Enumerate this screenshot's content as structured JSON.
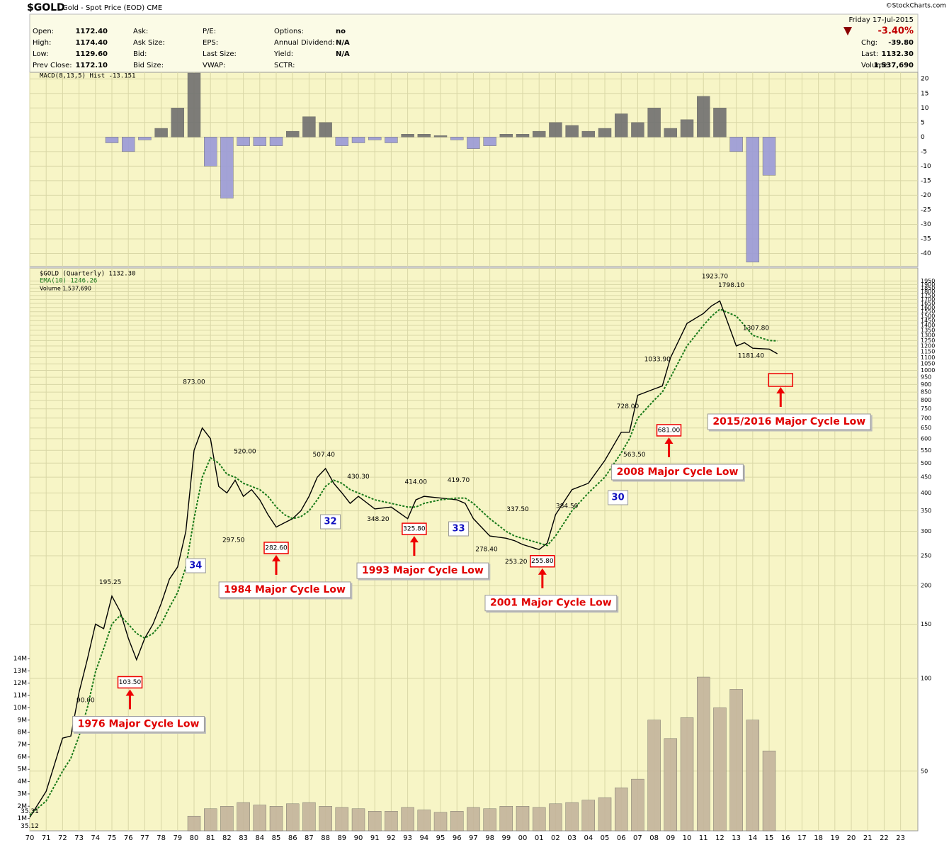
{
  "header": {
    "title": "$GOLD",
    "subtitle": "Gold - Spot Price (EOD) CME",
    "date": "Friday 17-Jul-2015",
    "copyright": "©StockCharts.com",
    "change_pct": "-3.40%",
    "columns": [
      [
        {
          "label": "Open:",
          "value": "1172.40"
        },
        {
          "label": "High:",
          "value": "1174.40"
        },
        {
          "label": "Low:",
          "value": "1129.60"
        },
        {
          "label": "Prev Close:",
          "value": "1172.10"
        }
      ],
      [
        {
          "label": "Ask:"
        },
        {
          "label": "Ask Size:"
        },
        {
          "label": "Bid:"
        },
        {
          "label": "Bid Size:"
        }
      ],
      [
        {
          "label": "P/E:"
        },
        {
          "label": "EPS:"
        },
        {
          "label": "Last Size:"
        },
        {
          "label": "VWAP:"
        }
      ],
      [
        {
          "label": "Options:",
          "value": "no"
        },
        {
          "label": "Annual Dividend:",
          "value": "N/A"
        },
        {
          "label": "Yield:",
          "value": "N/A"
        },
        {
          "label": "SCTR:"
        }
      ]
    ],
    "right": [
      {
        "label": "Chg:",
        "value": "-39.80"
      },
      {
        "label": "Last:",
        "value": "1132.30"
      },
      {
        "label": "Volume:",
        "value": "1,537,690"
      }
    ]
  },
  "chart_data": [
    {
      "type": "bar",
      "legend": "MACD(8,13,5) Hist -13.151",
      "color": "#707070",
      "negative_color": "#9a9ad8",
      "x": [
        1975,
        1976,
        1977,
        1978,
        1979,
        1980,
        1981,
        1982,
        1983,
        1984,
        1985,
        1986,
        1987,
        1988,
        1989,
        1990,
        1991,
        1992,
        1993,
        1994,
        1995,
        1996,
        1997,
        1998,
        1999,
        2000,
        2001,
        2002,
        2003,
        2004,
        2005,
        2006,
        2007,
        2008,
        2009,
        2010,
        2011,
        2012,
        2013,
        2014,
        2015
      ],
      "values": [
        -2,
        -5,
        -1,
        3,
        10,
        22,
        -10,
        -21,
        -3,
        -3,
        -3,
        2,
        7,
        5,
        -3,
        -2,
        -1,
        -2,
        1,
        1,
        0.5,
        -1,
        -4,
        -3,
        1,
        1,
        2,
        5,
        4,
        2,
        3,
        8,
        5,
        10,
        3,
        6,
        14,
        10,
        -5,
        -43,
        -13.151
      ],
      "ylim": [
        -44.5,
        22.25
      ],
      "yticks": [
        20,
        15,
        10,
        5,
        0,
        -5,
        -10,
        -15,
        -20,
        -25,
        -30,
        -35,
        -40
      ]
    },
    {
      "type": "line",
      "log_scale": true,
      "grid": true,
      "x": [
        1970,
        1971,
        1972,
        1972.5,
        1973,
        1973.5,
        1974,
        1974.5,
        1975,
        1975.5,
        1976,
        1976.5,
        1977,
        1977.5,
        1978,
        1978.5,
        1979,
        1979.5,
        1980,
        1980.5,
        1981,
        1981.5,
        1982,
        1982.5,
        1983,
        1983.5,
        1984,
        1984.5,
        1985,
        1985.5,
        1986,
        1986.5,
        1987,
        1987.5,
        1988,
        1988.5,
        1989,
        1989.5,
        1990,
        1991,
        1992,
        1993,
        1993.5,
        1994,
        1995,
        1996,
        1996.5,
        1997,
        1998,
        1999,
        1999.5,
        2000,
        2001,
        2001.5,
        2002,
        2003,
        2004,
        2005,
        2006,
        2006.5,
        2007,
        2008,
        2008.5,
        2009,
        2010,
        2011,
        2011.5,
        2012,
        2013,
        2013.5,
        2014,
        2015,
        2015.5
      ],
      "series": [
        {
          "name": "$GOLD (Quarterly) 1132.30",
          "color": "#000000",
          "values": [
            35.4,
            43,
            64,
            65,
            90,
            115,
            150,
            145,
            185,
            165,
            135,
            115,
            135,
            150,
            175,
            210,
            230,
            300,
            550,
            650,
            600,
            420,
            400,
            440,
            390,
            410,
            380,
            340,
            310,
            320,
            330,
            350,
            390,
            450,
            480,
            430,
            400,
            370,
            390,
            355,
            360,
            330,
            380,
            390,
            385,
            380,
            370,
            330,
            290,
            285,
            280,
            272,
            262,
            275,
            340,
            410,
            430,
            510,
            630,
            630,
            830,
            870,
            890,
            1100,
            1420,
            1530,
            1620,
            1680,
            1200,
            1230,
            1180,
            1172,
            1132.3
          ]
        },
        {
          "name": "EMA(10) 1246.26",
          "color": "#1a7a1a",
          "dashed": true,
          "values": [
            36,
            40,
            50,
            55,
            65,
            80,
            105,
            125,
            150,
            160,
            150,
            140,
            135,
            140,
            150,
            170,
            190,
            230,
            330,
            450,
            520,
            500,
            460,
            450,
            430,
            420,
            410,
            390,
            360,
            340,
            330,
            335,
            350,
            380,
            420,
            440,
            430,
            410,
            400,
            380,
            370,
            360,
            360,
            370,
            380,
            385,
            385,
            370,
            330,
            300,
            290,
            285,
            275,
            270,
            290,
            350,
            400,
            450,
            540,
            600,
            700,
            800,
            850,
            950,
            1200,
            1400,
            1500,
            1580,
            1500,
            1400,
            1300,
            1250,
            1246.26
          ]
        }
      ],
      "ylim": [
        32,
        2150
      ],
      "yticks": [
        50,
        100,
        150,
        200,
        250,
        300,
        350,
        400,
        450,
        500,
        550,
        600,
        650,
        700,
        750,
        800,
        850,
        900,
        950,
        1000,
        1050,
        1100,
        1150,
        1200,
        1250,
        1300,
        1350,
        1400,
        1450,
        1500,
        1550,
        1600,
        1650,
        1700,
        1750,
        1800,
        1850,
        1900,
        1950
      ],
      "xlim": [
        1970,
        2024.05
      ],
      "xticks": [
        {
          "value": 1970,
          "label": "70"
        },
        {
          "value": 1971,
          "label": "71"
        },
        {
          "value": 1972,
          "label": "72"
        },
        {
          "value": 1973,
          "label": "73"
        },
        {
          "value": 1974,
          "label": "74"
        },
        {
          "value": 1975,
          "label": "75"
        },
        {
          "value": 1976,
          "label": "76"
        },
        {
          "value": 1977,
          "label": "77"
        },
        {
          "value": 1978,
          "label": "78"
        },
        {
          "value": 1979,
          "label": "79"
        },
        {
          "value": 1980,
          "label": "80"
        },
        {
          "value": 1981,
          "label": "81"
        },
        {
          "value": 1982,
          "label": "82"
        },
        {
          "value": 1983,
          "label": "83"
        },
        {
          "value": 1984,
          "label": "84"
        },
        {
          "value": 1985,
          "label": "85"
        },
        {
          "value": 1986,
          "label": "86"
        },
        {
          "value": 1987,
          "label": "87"
        },
        {
          "value": 1988,
          "label": "88"
        },
        {
          "value": 1989,
          "label": "89"
        },
        {
          "value": 1990,
          "label": "90"
        },
        {
          "value": 1991,
          "label": "91"
        },
        {
          "value": 1992,
          "label": "92"
        },
        {
          "value": 1993,
          "label": "93"
        },
        {
          "value": 1994,
          "label": "94"
        },
        {
          "value": 1995,
          "label": "95"
        },
        {
          "value": 1996,
          "label": "96"
        },
        {
          "value": 1997,
          "label": "97"
        },
        {
          "value": 1998,
          "label": "98"
        },
        {
          "value": 1999,
          "label": "99"
        },
        {
          "value": 2000,
          "label": "00"
        },
        {
          "value": 2001,
          "label": "01"
        },
        {
          "value": 2002,
          "label": "02"
        },
        {
          "value": 2003,
          "label": "03"
        },
        {
          "value": 2004,
          "label": "04"
        },
        {
          "value": 2005,
          "label": "05"
        },
        {
          "value": 2006,
          "label": "06"
        },
        {
          "value": 2007,
          "label": "07"
        },
        {
          "value": 2008,
          "label": "08"
        },
        {
          "value": 2009,
          "label": "09"
        },
        {
          "value": 2010,
          "label": "10"
        },
        {
          "value": 2011,
          "label": "11"
        },
        {
          "value": 2012,
          "label": "12"
        },
        {
          "value": 2013,
          "label": "13"
        },
        {
          "value": 2014,
          "label": "14"
        },
        {
          "value": 2015,
          "label": "15"
        },
        {
          "value": 2016,
          "label": "16"
        },
        {
          "value": 2017,
          "label": "17"
        },
        {
          "value": 2018,
          "label": "18"
        },
        {
          "value": 2019,
          "label": "19"
        },
        {
          "value": 2020,
          "label": "20"
        },
        {
          "value": 2021,
          "label": "21"
        },
        {
          "value": 2022,
          "label": "22"
        },
        {
          "value": 2023,
          "label": "23"
        }
      ],
      "annotations": [
        {
          "x": 1970,
          "value": 35.31,
          "label": "35.31"
        },
        {
          "x": 1970,
          "value": 35.12,
          "label": "35.12"
        },
        {
          "x": 1974.9,
          "value": 195.25,
          "label": "195.25"
        },
        {
          "x": 1973.4,
          "value": 90,
          "label": "90.00"
        },
        {
          "x": 1980,
          "value": 873,
          "label": "873.00"
        },
        {
          "x": 1982.4,
          "value": 297.5,
          "label": "297.50"
        },
        {
          "x": 1983.1,
          "value": 520,
          "label": "520.00"
        },
        {
          "x": 1987.9,
          "value": 507.4,
          "label": "507.40"
        },
        {
          "x": 1990,
          "value": 430.3,
          "label": "430.30"
        },
        {
          "x": 1991.2,
          "value": 348.2,
          "label": "348.20"
        },
        {
          "x": 1993.5,
          "value": 414,
          "label": "414.00"
        },
        {
          "x": 1996.1,
          "value": 419.7,
          "label": "419.70"
        },
        {
          "x": 1997.8,
          "value": 278.4,
          "label": "278.40"
        },
        {
          "x": 1999.7,
          "value": 337.5,
          "label": "337.50"
        },
        {
          "x": 1999.6,
          "value": 253.2,
          "label": "253.20"
        },
        {
          "x": 2002.7,
          "value": 384.5,
          "label": "384.50"
        },
        {
          "x": 2006.4,
          "value": 728,
          "label": "728.00"
        },
        {
          "x": 2006.8,
          "value": 563.5,
          "label": "563.50"
        },
        {
          "x": 2008.2,
          "value": 1033.9,
          "label": "1033.90"
        },
        {
          "x": 2011.7,
          "value": 1923.7,
          "label": "1923.70"
        },
        {
          "x": 2012.7,
          "value": 1798.1,
          "label": "1798.10"
        },
        {
          "x": 2014.2,
          "value": 1307.8,
          "label": "1307.80"
        },
        {
          "x": 2013.9,
          "value": 1181.4,
          "label": "1181.40"
        }
      ],
      "cycle_lows": [
        {
          "label": "1976 Major Cycle Low",
          "x": 1976.1,
          "value": 103.5,
          "value_label": "103.50"
        },
        {
          "label": "1984 Major Cycle Low",
          "x": 1985,
          "value": 282.6,
          "value_label": "282.60"
        },
        {
          "label": "1993 Major Cycle Low",
          "x": 1993.4,
          "value": 325.8,
          "value_label": "325.80"
        },
        {
          "label": "2001 Major Cycle Low",
          "x": 2001.2,
          "value": 255.8,
          "value_label": "255.80"
        },
        {
          "label": "2008 Major Cycle Low",
          "x": 2008.9,
          "value": 681,
          "value_label": "681.00"
        },
        {
          "label": "2015/2016 Major Cycle Low",
          "x": 2015.7
        }
      ],
      "cycle_lengths": [
        {
          "x": 1980.1,
          "value": 34
        },
        {
          "x": 1988.3,
          "value": 32
        },
        {
          "x": 1996.1,
          "value": 33
        },
        {
          "x": 2005.8,
          "value": 30
        }
      ]
    },
    {
      "type": "bar",
      "legend": "Volume 1,537,690",
      "color": "#c4b49c",
      "x": [
        1980,
        1981,
        1982,
        1983,
        1984,
        1985,
        1986,
        1987,
        1988,
        1989,
        1990,
        1991,
        1992,
        1993,
        1994,
        1995,
        1996,
        1997,
        1998,
        1999,
        2000,
        2001,
        2002,
        2003,
        2004,
        2005,
        2006,
        2007,
        2008,
        2009,
        2010,
        2011,
        2012,
        2013,
        2014,
        2015
      ],
      "values": [
        1200000,
        1800000,
        2000000,
        2300000,
        2100000,
        2000000,
        2200000,
        2300000,
        2000000,
        1900000,
        1800000,
        1600000,
        1600000,
        1900000,
        1700000,
        1500000,
        1600000,
        1900000,
        1800000,
        2000000,
        2000000,
        1900000,
        2200000,
        2300000,
        2500000,
        2700000,
        3500000,
        4200000,
        9000000,
        7500000,
        9200000,
        12500000,
        10000000,
        11500000,
        9000000,
        6500000
      ],
      "ylim": [
        0,
        14000000
      ],
      "yticks": [
        {
          "value": 1000000,
          "label": "1M"
        },
        {
          "value": 2000000,
          "label": "2M"
        },
        {
          "value": 3000000,
          "label": "3M"
        },
        {
          "value": 4000000,
          "label": "4M"
        },
        {
          "value": 5000000,
          "label": "5M"
        },
        {
          "value": 6000000,
          "label": "6M"
        },
        {
          "value": 7000000,
          "label": "7M"
        },
        {
          "value": 8000000,
          "label": "8M"
        },
        {
          "value": 9000000,
          "label": "9M"
        },
        {
          "value": 10000000,
          "label": "10M"
        },
        {
          "value": 11000000,
          "label": "11M"
        },
        {
          "value": 12000000,
          "label": "12M"
        },
        {
          "value": 13000000,
          "label": "13M"
        },
        {
          "value": 14000000,
          "label": "14M"
        }
      ]
    }
  ]
}
